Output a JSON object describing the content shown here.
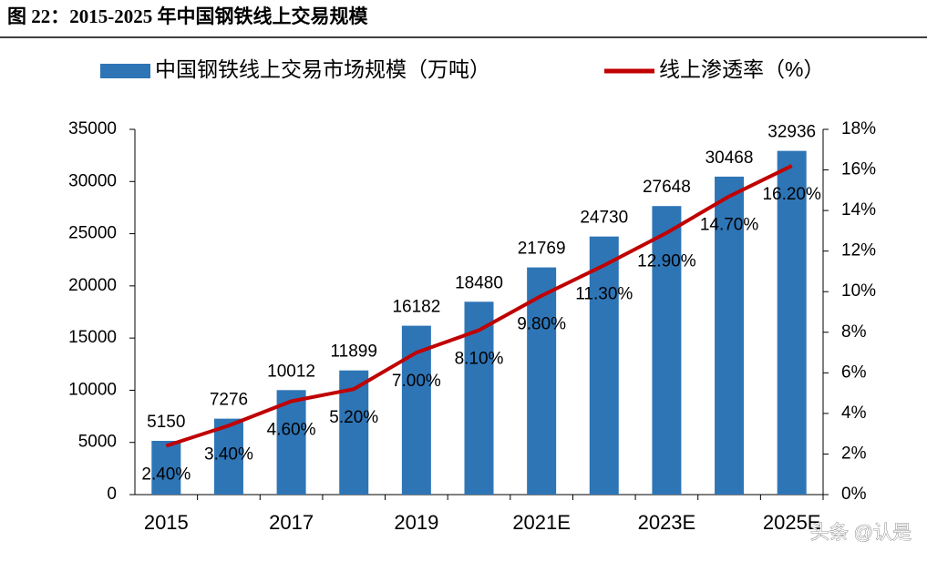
{
  "chart_data": {
    "type": "bar_line",
    "title": "图 22：2015-2025 年中国钢铁线上交易规模",
    "categories": [
      "2015",
      null,
      "2017",
      null,
      "2019",
      null,
      "2021E",
      null,
      "2023E",
      null,
      "2025E"
    ],
    "series": [
      {
        "name": "中国钢铁线上交易市场规模（万吨）",
        "type": "bar",
        "color": "#2e75b6",
        "values": [
          5150,
          7276,
          10012,
          11899,
          16182,
          18480,
          21769,
          24730,
          27648,
          30468,
          32936
        ]
      },
      {
        "name": "线上渗透率（%）",
        "type": "line",
        "axis": "y2",
        "color": "#c00000",
        "values": [
          2.4,
          3.4,
          4.6,
          5.2,
          7.0,
          8.1,
          9.8,
          11.3,
          12.9,
          14.7,
          16.2
        ],
        "value_labels": [
          "2.40%",
          "3.40%",
          "4.60%",
          "5.20%",
          "7.00%",
          "8.10%",
          "9.80%",
          "11.30%",
          "12.90%",
          "14.70%",
          "16.20%"
        ]
      }
    ],
    "ylim": [
      0,
      35000
    ],
    "yticks": [
      0,
      5000,
      10000,
      15000,
      20000,
      25000,
      30000,
      35000
    ],
    "y2lim": [
      0,
      18
    ],
    "y2ticks": [
      {
        "value": 0,
        "label": "0%"
      },
      {
        "value": 2,
        "label": "2%"
      },
      {
        "value": 4,
        "label": "4%"
      },
      {
        "value": 6,
        "label": "6%"
      },
      {
        "value": 8,
        "label": "8%"
      },
      {
        "value": 10,
        "label": "10%"
      },
      {
        "value": 12,
        "label": "12%"
      },
      {
        "value": 14,
        "label": "14%"
      },
      {
        "value": 16,
        "label": "16%"
      },
      {
        "value": 18,
        "label": "18%"
      }
    ],
    "legend": "top",
    "watermark": "头条 @认是"
  }
}
